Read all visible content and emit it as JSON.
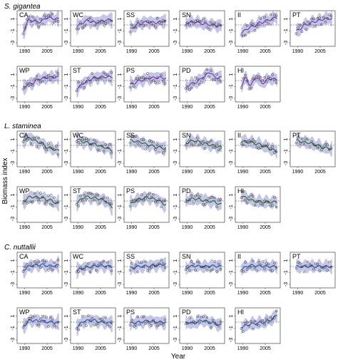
{
  "figure": {
    "ylabel": "Biomass index",
    "xlabel": "Year",
    "x_ticks": [
      "1990",
      "2005"
    ],
    "y_ticks": [
      "1",
      "-1",
      "-3"
    ]
  },
  "colors": {
    "band": "#c3c6e6",
    "dashed": "#333333",
    "points": "#222222",
    "frame": "#444444"
  },
  "chart_data": {
    "type": "line",
    "panel_type": "small multiples: smoothed trend line with shaded uncertainty band, dashed reference line and circle observations",
    "x_range": [
      1985,
      2015
    ],
    "ylim": [
      -3.6,
      2.4
    ],
    "x_ticks": [
      1990,
      2005
    ],
    "y_ticks": [
      1,
      -1,
      -3
    ],
    "dashed_reference": 0,
    "groups": [
      {
        "species": "S. gigantea",
        "color": "#7d3aa8",
        "panels": [
          {
            "site": "CA",
            "knots": [
              [
                1989,
                -1.0
              ],
              [
                1993,
                0.8
              ],
              [
                2000,
                0.5
              ],
              [
                2005,
                1.2
              ],
              [
                2013,
                1.0
              ]
            ]
          },
          {
            "site": "WC",
            "knots": [
              [
                1989,
                -0.2
              ],
              [
                1996,
                0.7
              ],
              [
                2002,
                0.4
              ],
              [
                2008,
                0.8
              ],
              [
                2013,
                0.9
              ]
            ]
          },
          {
            "site": "SS",
            "knots": [
              [
                1989,
                -0.7
              ],
              [
                1995,
                0.2
              ],
              [
                2000,
                0.5
              ],
              [
                2006,
                0.4
              ],
              [
                2013,
                0.7
              ]
            ]
          },
          {
            "site": "SN",
            "knots": [
              [
                1989,
                0.4
              ],
              [
                1995,
                0.5
              ],
              [
                2001,
                0.2
              ],
              [
                2007,
                0.0
              ],
              [
                2013,
                -0.2
              ]
            ]
          },
          {
            "site": "II",
            "knots": [
              [
                1989,
                -1.2
              ],
              [
                1996,
                -0.3
              ],
              [
                2002,
                0.4
              ],
              [
                2008,
                0.9
              ],
              [
                2013,
                1.3
              ]
            ]
          },
          {
            "site": "PT",
            "knots": [
              [
                1989,
                -1.0
              ],
              [
                1996,
                0.1
              ],
              [
                2002,
                0.6
              ],
              [
                2008,
                1.0
              ],
              [
                2013,
                1.1
              ]
            ]
          },
          {
            "site": "WP",
            "knots": [
              [
                1989,
                -1.0
              ],
              [
                1995,
                -0.4
              ],
              [
                2000,
                0.3
              ],
              [
                2006,
                0.5
              ],
              [
                2013,
                0.6
              ]
            ]
          },
          {
            "site": "ST",
            "knots": [
              [
                1989,
                -1.3
              ],
              [
                1995,
                -0.3
              ],
              [
                2000,
                0.4
              ],
              [
                2006,
                0.6
              ],
              [
                2013,
                0.6
              ]
            ]
          },
          {
            "site": "PS",
            "knots": [
              [
                1989,
                -0.7
              ],
              [
                1996,
                0.0
              ],
              [
                2002,
                0.4
              ],
              [
                2008,
                0.5
              ],
              [
                2013,
                0.4
              ]
            ]
          },
          {
            "site": "PD",
            "knots": [
              [
                1989,
                -0.9
              ],
              [
                1996,
                -0.3
              ],
              [
                2001,
                0.6
              ],
              [
                2005,
                1.4
              ],
              [
                2009,
                0.5
              ],
              [
                2013,
                0.5
              ]
            ]
          },
          {
            "site": "HI",
            "knots": [
              [
                1989,
                -0.8
              ],
              [
                1992,
                0.4
              ],
              [
                1995,
                -0.8
              ],
              [
                1999,
                0.5
              ],
              [
                2003,
                -0.4
              ],
              [
                2008,
                0.3
              ],
              [
                2013,
                0.2
              ]
            ]
          }
        ]
      },
      {
        "species": "L. staminea",
        "color": "#2f6a2f",
        "panels": [
          {
            "site": "CA",
            "knots": [
              [
                1989,
                1.0
              ],
              [
                1993,
                1.2
              ],
              [
                2000,
                0.5
              ],
              [
                2006,
                -0.4
              ],
              [
                2013,
                -0.9
              ]
            ]
          },
          {
            "site": "WC",
            "knots": [
              [
                1989,
                1.0
              ],
              [
                1995,
                0.5
              ],
              [
                2001,
                0.2
              ],
              [
                2007,
                -0.3
              ],
              [
                2013,
                -0.8
              ]
            ]
          },
          {
            "site": "SS",
            "knots": [
              [
                1989,
                0.8
              ],
              [
                1995,
                0.6
              ],
              [
                2001,
                0.1
              ],
              [
                2007,
                -0.3
              ],
              [
                2013,
                -0.5
              ]
            ]
          },
          {
            "site": "SN",
            "knots": [
              [
                1989,
                0.4
              ],
              [
                1995,
                0.8
              ],
              [
                2001,
                0.3
              ],
              [
                2007,
                0.0
              ],
              [
                2013,
                -0.3
              ]
            ]
          },
          {
            "site": "II",
            "knots": [
              [
                1989,
                0.7
              ],
              [
                1995,
                0.5
              ],
              [
                2001,
                0.2
              ],
              [
                2005,
                -0.2
              ],
              [
                2009,
                -0.7
              ],
              [
                2013,
                -1.0
              ]
            ]
          },
          {
            "site": "PT",
            "knots": [
              [
                1989,
                0.8
              ],
              [
                1996,
                0.5
              ],
              [
                2002,
                0.1
              ],
              [
                2008,
                -0.4
              ],
              [
                2013,
                -0.6
              ]
            ]
          },
          {
            "site": "WP",
            "knots": [
              [
                1989,
                0.0
              ],
              [
                1994,
                0.7
              ],
              [
                2000,
                0.6
              ],
              [
                2006,
                0.2
              ],
              [
                2013,
                -0.5
              ]
            ]
          },
          {
            "site": "ST",
            "knots": [
              [
                1989,
                -0.2
              ],
              [
                1995,
                0.7
              ],
              [
                2001,
                0.5
              ],
              [
                2007,
                0.2
              ],
              [
                2013,
                -1.0
              ]
            ]
          },
          {
            "site": "PS",
            "knots": [
              [
                1989,
                -0.5
              ],
              [
                1995,
                0.3
              ],
              [
                2000,
                0.6
              ],
              [
                2006,
                0.3
              ],
              [
                2013,
                -0.6
              ]
            ]
          },
          {
            "site": "PD",
            "knots": [
              [
                1989,
                0.2
              ],
              [
                1995,
                0.4
              ],
              [
                2001,
                0.1
              ],
              [
                2007,
                -0.1
              ],
              [
                2013,
                -0.6
              ]
            ]
          },
          {
            "site": "HI",
            "knots": [
              [
                1989,
                0.9
              ],
              [
                1993,
                0.4
              ],
              [
                1999,
                -0.1
              ],
              [
                2006,
                -0.2
              ],
              [
                2013,
                -0.2
              ]
            ]
          }
        ]
      },
      {
        "species": "C. nuttallii",
        "color": "#2e58a8",
        "panels": [
          {
            "site": "CA",
            "knots": [
              [
                1989,
                -0.5
              ],
              [
                1995,
                0.2
              ],
              [
                2001,
                0.3
              ],
              [
                2007,
                0.1
              ],
              [
                2013,
                0.2
              ]
            ]
          },
          {
            "site": "WC",
            "knots": [
              [
                1989,
                -0.6
              ],
              [
                1995,
                -0.2
              ],
              [
                2001,
                0.1
              ],
              [
                2007,
                0.1
              ],
              [
                2013,
                0.0
              ]
            ]
          },
          {
            "site": "SS",
            "knots": [
              [
                1989,
                -0.3
              ],
              [
                1995,
                0.0
              ],
              [
                2001,
                0.1
              ],
              [
                2007,
                0.2
              ],
              [
                2013,
                0.4
              ]
            ]
          },
          {
            "site": "SN",
            "knots": [
              [
                1989,
                -0.2
              ],
              [
                1995,
                0.1
              ],
              [
                2001,
                0.0
              ],
              [
                2007,
                0.1
              ],
              [
                2013,
                0.0
              ]
            ]
          },
          {
            "site": "II",
            "knots": [
              [
                1989,
                -0.4
              ],
              [
                1995,
                0.2
              ],
              [
                2001,
                0.1
              ],
              [
                2007,
                0.0
              ],
              [
                2013,
                0.0
              ]
            ]
          },
          {
            "site": "PT",
            "knots": [
              [
                1989,
                0.0
              ],
              [
                1995,
                0.0
              ],
              [
                2001,
                0.0
              ],
              [
                2007,
                0.0
              ],
              [
                2013,
                0.0
              ]
            ]
          },
          {
            "site": "WP",
            "knots": [
              [
                1989,
                -0.6
              ],
              [
                1994,
                0.3
              ],
              [
                2000,
                0.2
              ],
              [
                2006,
                0.0
              ],
              [
                2013,
                -0.1
              ]
            ]
          },
          {
            "site": "ST",
            "knots": [
              [
                1989,
                -0.8
              ],
              [
                1994,
                0.2
              ],
              [
                2000,
                0.3
              ],
              [
                2006,
                0.0
              ],
              [
                2013,
                -0.2
              ]
            ]
          },
          {
            "site": "PS",
            "knots": [
              [
                1989,
                -0.2
              ],
              [
                1995,
                0.0
              ],
              [
                2001,
                0.2
              ],
              [
                2007,
                0.0
              ],
              [
                2013,
                0.0
              ]
            ]
          },
          {
            "site": "PD",
            "knots": [
              [
                1989,
                0.0
              ],
              [
                1994,
                -0.2
              ],
              [
                2000,
                0.3
              ],
              [
                2006,
                -0.1
              ],
              [
                2013,
                -0.5
              ]
            ]
          },
          {
            "site": "HI",
            "knots": [
              [
                1989,
                -0.8
              ],
              [
                1996,
                -0.3
              ],
              [
                2003,
                -0.1
              ],
              [
                2009,
                0.4
              ],
              [
                2013,
                1.2
              ]
            ]
          }
        ]
      }
    ]
  }
}
